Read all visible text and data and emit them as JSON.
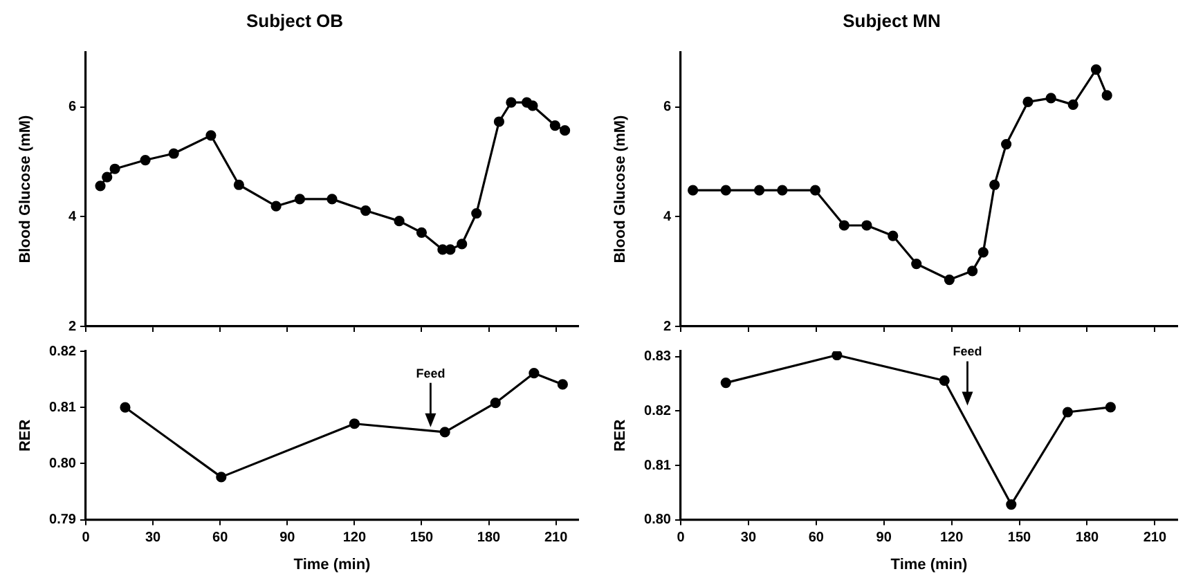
{
  "chart_data": [
    {
      "type": "line",
      "title": "Subject OB",
      "ylabel": "Blood Glucose (mM)",
      "x": [
        6.5,
        9.5,
        13,
        26.6,
        39.3,
        55.9,
        68.4,
        85,
        95.6,
        110,
        125,
        140,
        150,
        159.4,
        162.8,
        168,
        174.5,
        184.6,
        190,
        197,
        199.6,
        209.6,
        214
      ],
      "values": [
        4.56,
        4.72,
        4.87,
        5.03,
        5.15,
        5.48,
        4.58,
        4.19,
        4.32,
        4.32,
        4.11,
        3.92,
        3.71,
        3.4,
        3.4,
        3.5,
        4.06,
        5.73,
        6.08,
        6.08,
        6.02,
        5.66,
        5.57
      ],
      "color": "#000000",
      "marker": "circle",
      "xlim": [
        0,
        220
      ],
      "xticks": [
        0,
        30,
        60,
        90,
        120,
        150,
        180,
        210
      ],
      "ylim": [
        2,
        7
      ],
      "yticks": [
        2,
        4,
        6
      ],
      "tick_labels": "y",
      "grid": false
    },
    {
      "type": "line",
      "title": "Subject MN",
      "ylabel": "Blood Glucose (mM)",
      "x": [
        5.4,
        20,
        34.8,
        45,
        59.6,
        72.4,
        82.4,
        94,
        104.4,
        119,
        129.2,
        134,
        139,
        144.2,
        153.8,
        164,
        173.8,
        184,
        188.8
      ],
      "values": [
        4.48,
        4.48,
        4.48,
        4.48,
        4.48,
        3.84,
        3.84,
        3.65,
        3.14,
        2.85,
        3.01,
        3.35,
        4.58,
        5.32,
        6.09,
        6.16,
        6.04,
        6.68,
        6.21
      ],
      "color": "#000000",
      "marker": "circle",
      "xlim": [
        0,
        220
      ],
      "xticks": [
        0,
        30,
        60,
        90,
        120,
        150,
        180,
        210
      ],
      "ylim": [
        2,
        7
      ],
      "yticks": [
        2,
        4,
        6
      ],
      "tick_labels": "y",
      "grid": false
    },
    {
      "type": "line",
      "xlabel": "Time (min)",
      "ylabel": "RER",
      "x": [
        17.6,
        60.5,
        120,
        160.4,
        183,
        200.2,
        213
      ],
      "values": [
        0.81,
        0.7976,
        0.8071,
        0.8056,
        0.8108,
        0.8161,
        0.8141
      ],
      "color": "#000000",
      "marker": "circle",
      "xlim": [
        0,
        220
      ],
      "xticks": [
        0,
        30,
        60,
        90,
        120,
        150,
        180,
        210
      ],
      "ylim": [
        0.79,
        0.82
      ],
      "yticks": [
        {
          "value": 0.79,
          "label": "0.79"
        },
        {
          "value": 0.8,
          "label": "0.80"
        },
        {
          "value": 0.81,
          "label": "0.81"
        },
        {
          "value": 0.82,
          "label": "0.82"
        }
      ],
      "grid": false,
      "annotations": [
        {
          "text": "Feed",
          "x": 154,
          "y": 0.806
        }
      ]
    },
    {
      "type": "line",
      "xlabel": "Time (min)",
      "ylabel": "RER",
      "x": [
        20,
        69.2,
        116.8,
        146.4,
        171.4,
        190.4
      ],
      "values": [
        0.8252,
        0.8303,
        0.8256,
        0.8028,
        0.8198,
        0.8207
      ],
      "color": "#000000",
      "marker": "circle",
      "xlim": [
        0,
        220
      ],
      "xticks": [
        0,
        30,
        60,
        90,
        120,
        150,
        180,
        210
      ],
      "ylim": [
        0.8,
        0.831
      ],
      "yticks": [
        {
          "value": 0.8,
          "label": "0.80"
        },
        {
          "value": 0.81,
          "label": "0.81"
        },
        {
          "value": 0.82,
          "label": "0.82"
        },
        {
          "value": 0.83,
          "label": "0.83"
        }
      ],
      "grid": false,
      "annotations": [
        {
          "text": "Feed",
          "x": 127,
          "y": 0.8205
        }
      ]
    }
  ]
}
